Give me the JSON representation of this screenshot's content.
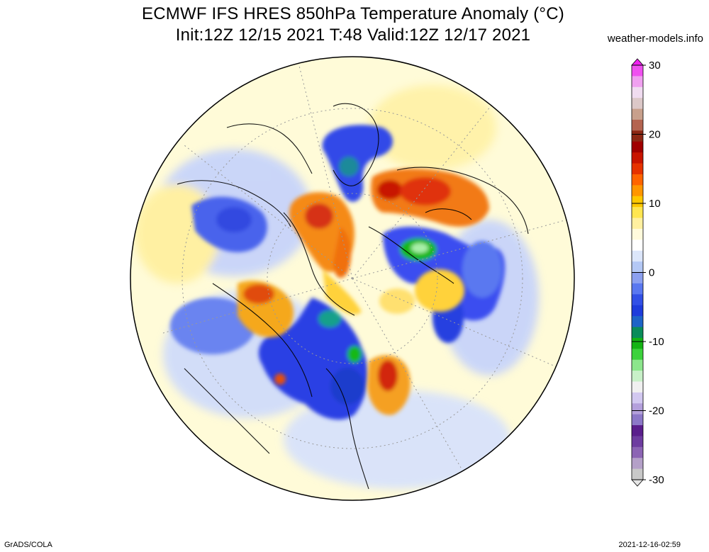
{
  "title_line1": "ECMWF IFS HRES 850hPa Temperature Anomaly (°C)",
  "title_line2": "Init:12Z 12/15 2021 T:48 Valid:12Z 12/17 2021",
  "source": "weather-models.info",
  "footer_left": "GrADS/COLA",
  "footer_right": "2021-12-16-02:59",
  "colorbar": {
    "min": -30,
    "max": 30,
    "ticks": [
      {
        "value": 30,
        "label": "30"
      },
      {
        "value": 20,
        "label": "20"
      },
      {
        "value": 10,
        "label": "10"
      },
      {
        "value": 0,
        "label": "0"
      },
      {
        "value": -10,
        "label": "-10"
      },
      {
        "value": -20,
        "label": "-20"
      },
      {
        "value": -30,
        "label": "-30"
      }
    ],
    "colors": [
      "#c8c8c8",
      "#b4a0c8",
      "#8c64b4",
      "#6e3ca0",
      "#5a1e8c",
      "#8c78c8",
      "#b4a0dc",
      "#d2c8f0",
      "#f0f0f0",
      "#c8f0c8",
      "#8ce68c",
      "#3cd23c",
      "#14b414",
      "#0a8c5a",
      "#1e64c8",
      "#1e3cdc",
      "#3250e6",
      "#5a78f0",
      "#8ca0f0",
      "#b4c8f5",
      "#dce6fa",
      "#ffffff",
      "#fffadc",
      "#fff0a0",
      "#ffe650",
      "#ffc800",
      "#ff9600",
      "#ff6400",
      "#e63200",
      "#c81400",
      "#a00000",
      "#8c2814",
      "#b46450",
      "#c8a08c",
      "#dcc8c8",
      "#f0dcf0",
      "#f0a0f0",
      "#f050f0"
    ]
  },
  "anomaly_regions": [
    {
      "name": "cold-greenland-north",
      "color": "#2c3ce0",
      "core": "#22b14c"
    },
    {
      "name": "warm-scandinavia",
      "color": "#f27a14",
      "core": "#d02010"
    },
    {
      "name": "warm-eastern-siberia",
      "color": "#f27a14",
      "core": "#c81400"
    },
    {
      "name": "cold-north-america",
      "color": "#3a4ef0",
      "core": "#14b414"
    },
    {
      "name": "cold-central-asia",
      "color": "#2c40e4",
      "core": "#14b414"
    },
    {
      "name": "warm-siberia-west",
      "color": "#f59e1a",
      "core": "#e34d10"
    }
  ]
}
